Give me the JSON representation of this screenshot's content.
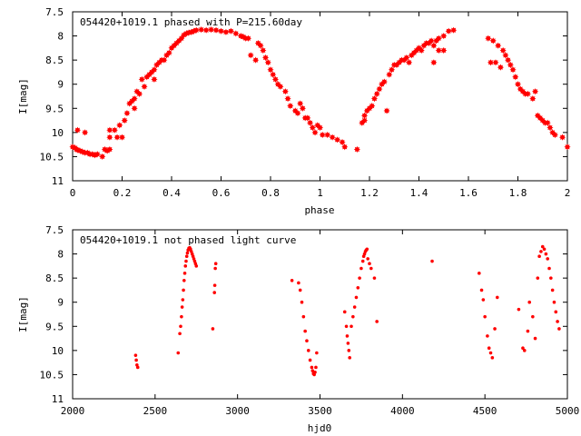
{
  "chart_data": [
    {
      "type": "scatter",
      "title": "054420+1019.1 phased with P=215.60day",
      "xlabel": "phase",
      "ylabel": "I[mag]",
      "xlim": [
        0,
        2
      ],
      "ylim": [
        7.5,
        11
      ],
      "y_inverted": true,
      "xticks": [
        0,
        0.2,
        0.4,
        0.6,
        0.8,
        1,
        1.2,
        1.4,
        1.6,
        1.8,
        2
      ],
      "xtick_labels": [
        "0",
        "0.2",
        "0.4",
        "0.6",
        "0.8",
        "1",
        "1.2",
        "1.4",
        "1.6",
        "1.8",
        "2"
      ],
      "yticks": [
        7.5,
        8,
        8.5,
        9,
        9.5,
        10,
        10.5,
        11
      ],
      "ytick_labels": [
        "7.5",
        "8",
        "8.5",
        "9",
        "9.5",
        "10",
        "10.5",
        "11"
      ],
      "marker_color": "#ff0000",
      "marker": "star",
      "points": [
        [
          0.0,
          10.3
        ],
        [
          0.01,
          10.32
        ],
        [
          0.015,
          10.35
        ],
        [
          0.02,
          10.36
        ],
        [
          0.03,
          10.38
        ],
        [
          0.04,
          10.4
        ],
        [
          0.05,
          10.42
        ],
        [
          0.06,
          10.42
        ],
        [
          0.07,
          10.45
        ],
        [
          0.08,
          10.45
        ],
        [
          0.09,
          10.47
        ],
        [
          0.1,
          10.45
        ],
        [
          0.12,
          10.5
        ],
        [
          0.14,
          10.38
        ],
        [
          0.02,
          9.95
        ],
        [
          0.05,
          10.0
        ],
        [
          0.13,
          10.35
        ],
        [
          0.15,
          10.35
        ],
        [
          0.15,
          10.1
        ],
        [
          0.15,
          9.95
        ],
        [
          0.17,
          9.95
        ],
        [
          0.18,
          10.1
        ],
        [
          0.19,
          9.85
        ],
        [
          0.2,
          10.1
        ],
        [
          0.21,
          9.75
        ],
        [
          0.22,
          9.6
        ],
        [
          0.23,
          9.4
        ],
        [
          0.24,
          9.35
        ],
        [
          0.25,
          9.3
        ],
        [
          0.25,
          9.5
        ],
        [
          0.26,
          9.15
        ],
        [
          0.27,
          9.2
        ],
        [
          0.28,
          8.9
        ],
        [
          0.29,
          9.05
        ],
        [
          0.3,
          8.85
        ],
        [
          0.31,
          8.8
        ],
        [
          0.32,
          8.75
        ],
        [
          0.33,
          8.7
        ],
        [
          0.33,
          8.9
        ],
        [
          0.34,
          8.6
        ],
        [
          0.35,
          8.55
        ],
        [
          0.36,
          8.5
        ],
        [
          0.37,
          8.5
        ],
        [
          0.38,
          8.4
        ],
        [
          0.39,
          8.35
        ],
        [
          0.4,
          8.25
        ],
        [
          0.41,
          8.2
        ],
        [
          0.42,
          8.15
        ],
        [
          0.43,
          8.1
        ],
        [
          0.44,
          8.05
        ],
        [
          0.45,
          7.98
        ],
        [
          0.46,
          7.95
        ],
        [
          0.47,
          7.93
        ],
        [
          0.48,
          7.92
        ],
        [
          0.49,
          7.9
        ],
        [
          0.5,
          7.88
        ],
        [
          0.52,
          7.87
        ],
        [
          0.54,
          7.88
        ],
        [
          0.56,
          7.87
        ],
        [
          0.58,
          7.88
        ],
        [
          0.6,
          7.9
        ],
        [
          0.62,
          7.92
        ],
        [
          0.64,
          7.9
        ],
        [
          0.66,
          7.95
        ],
        [
          0.68,
          8.0
        ],
        [
          0.69,
          8.02
        ],
        [
          0.7,
          8.05
        ],
        [
          0.71,
          8.05
        ],
        [
          0.72,
          8.4
        ],
        [
          0.74,
          8.5
        ],
        [
          0.75,
          8.15
        ],
        [
          0.76,
          8.2
        ],
        [
          0.77,
          8.3
        ],
        [
          0.78,
          8.45
        ],
        [
          0.79,
          8.55
        ],
        [
          0.8,
          8.7
        ],
        [
          0.81,
          8.8
        ],
        [
          0.82,
          8.9
        ],
        [
          0.83,
          9.0
        ],
        [
          0.84,
          9.05
        ],
        [
          0.86,
          9.15
        ],
        [
          0.87,
          9.3
        ],
        [
          0.88,
          9.45
        ],
        [
          0.9,
          9.55
        ],
        [
          0.91,
          9.6
        ],
        [
          0.92,
          9.4
        ],
        [
          0.93,
          9.5
        ],
        [
          0.94,
          9.7
        ],
        [
          0.95,
          9.7
        ],
        [
          0.96,
          9.8
        ],
        [
          0.97,
          9.9
        ],
        [
          0.98,
          10.0
        ],
        [
          0.99,
          9.85
        ],
        [
          1.0,
          9.9
        ],
        [
          1.01,
          10.05
        ],
        [
          1.03,
          10.05
        ],
        [
          1.05,
          10.1
        ],
        [
          1.07,
          10.15
        ],
        [
          1.09,
          10.2
        ],
        [
          1.1,
          10.3
        ],
        [
          1.15,
          10.35
        ],
        [
          1.17,
          9.8
        ],
        [
          1.18,
          9.75
        ],
        [
          1.18,
          9.65
        ],
        [
          1.19,
          9.55
        ],
        [
          1.2,
          9.5
        ],
        [
          1.21,
          9.45
        ],
        [
          1.22,
          9.3
        ],
        [
          1.23,
          9.2
        ],
        [
          1.24,
          9.1
        ],
        [
          1.25,
          9.0
        ],
        [
          1.26,
          8.95
        ],
        [
          1.27,
          9.55
        ],
        [
          1.28,
          8.8
        ],
        [
          1.29,
          8.7
        ],
        [
          1.3,
          8.6
        ],
        [
          1.31,
          8.6
        ],
        [
          1.32,
          8.55
        ],
        [
          1.33,
          8.5
        ],
        [
          1.34,
          8.5
        ],
        [
          1.35,
          8.45
        ],
        [
          1.36,
          8.55
        ],
        [
          1.37,
          8.4
        ],
        [
          1.38,
          8.35
        ],
        [
          1.39,
          8.3
        ],
        [
          1.4,
          8.25
        ],
        [
          1.41,
          8.3
        ],
        [
          1.42,
          8.2
        ],
        [
          1.43,
          8.15
        ],
        [
          1.44,
          8.15
        ],
        [
          1.45,
          8.1
        ],
        [
          1.46,
          8.2
        ],
        [
          1.47,
          8.1
        ],
        [
          1.48,
          8.05
        ],
        [
          1.5,
          8.0
        ],
        [
          1.52,
          7.9
        ],
        [
          1.54,
          7.88
        ],
        [
          1.46,
          8.55
        ],
        [
          1.48,
          8.3
        ],
        [
          1.5,
          8.3
        ],
        [
          1.68,
          8.05
        ],
        [
          1.69,
          8.55
        ],
        [
          1.7,
          8.1
        ],
        [
          1.71,
          8.55
        ],
        [
          1.72,
          8.2
        ],
        [
          1.73,
          8.65
        ],
        [
          1.74,
          8.3
        ],
        [
          1.75,
          8.4
        ],
        [
          1.76,
          8.5
        ],
        [
          1.77,
          8.6
        ],
        [
          1.78,
          8.7
        ],
        [
          1.79,
          8.85
        ],
        [
          1.8,
          9.0
        ],
        [
          1.81,
          9.1
        ],
        [
          1.82,
          9.15
        ],
        [
          1.83,
          9.2
        ],
        [
          1.84,
          9.2
        ],
        [
          1.86,
          9.3
        ],
        [
          1.87,
          9.15
        ],
        [
          1.88,
          9.65
        ],
        [
          1.89,
          9.7
        ],
        [
          1.9,
          9.75
        ],
        [
          1.91,
          9.8
        ],
        [
          1.92,
          9.8
        ],
        [
          1.93,
          9.9
        ],
        [
          1.94,
          10.0
        ],
        [
          1.95,
          10.05
        ],
        [
          1.98,
          10.1
        ],
        [
          2.0,
          10.3
        ]
      ]
    },
    {
      "type": "scatter",
      "title": "054420+1019.1 not phased light curve",
      "xlabel": "hjd0",
      "ylabel": "I[mag]",
      "xlim": [
        2000,
        5000
      ],
      "ylim": [
        7.5,
        11
      ],
      "y_inverted": true,
      "xticks": [
        2000,
        2500,
        3000,
        3500,
        4000,
        4500,
        5000
      ],
      "xtick_labels": [
        "2000",
        "2500",
        "3000",
        "3500",
        "4000",
        "4500",
        "5000"
      ],
      "yticks": [
        7.5,
        8,
        8.5,
        9,
        9.5,
        10,
        10.5,
        11
      ],
      "ytick_labels": [
        "7.5",
        "8",
        "8.5",
        "9",
        "9.5",
        "10",
        "10.5",
        "11"
      ],
      "marker_color": "#ff0000",
      "marker": "dot",
      "points": [
        [
          2382,
          10.1
        ],
        [
          2386,
          10.2
        ],
        [
          2390,
          10.3
        ],
        [
          2395,
          10.35
        ],
        [
          2640,
          10.05
        ],
        [
          2650,
          9.65
        ],
        [
          2655,
          9.5
        ],
        [
          2660,
          9.3
        ],
        [
          2664,
          9.1
        ],
        [
          2668,
          8.95
        ],
        [
          2672,
          8.75
        ],
        [
          2676,
          8.55
        ],
        [
          2680,
          8.4
        ],
        [
          2684,
          8.25
        ],
        [
          2688,
          8.15
        ],
        [
          2692,
          8.05
        ],
        [
          2696,
          7.98
        ],
        [
          2700,
          7.92
        ],
        [
          2705,
          7.88
        ],
        [
          2710,
          7.87
        ],
        [
          2715,
          7.9
        ],
        [
          2720,
          7.95
        ],
        [
          2725,
          8.0
        ],
        [
          2730,
          8.05
        ],
        [
          2735,
          8.1
        ],
        [
          2740,
          8.15
        ],
        [
          2745,
          8.2
        ],
        [
          2750,
          8.25
        ],
        [
          2850,
          9.55
        ],
        [
          2860,
          8.8
        ],
        [
          2862,
          8.65
        ],
        [
          2865,
          8.3
        ],
        [
          2868,
          8.2
        ],
        [
          3330,
          8.55
        ],
        [
          3370,
          8.6
        ],
        [
          3380,
          8.75
        ],
        [
          3390,
          9.0
        ],
        [
          3400,
          9.3
        ],
        [
          3410,
          9.6
        ],
        [
          3420,
          9.8
        ],
        [
          3430,
          10.0
        ],
        [
          3440,
          10.2
        ],
        [
          3450,
          10.35
        ],
        [
          3455,
          10.42
        ],
        [
          3460,
          10.48
        ],
        [
          3465,
          10.5
        ],
        [
          3470,
          10.45
        ],
        [
          3475,
          10.35
        ],
        [
          3480,
          10.05
        ],
        [
          3650,
          9.2
        ],
        [
          3660,
          9.5
        ],
        [
          3665,
          9.7
        ],
        [
          3670,
          9.85
        ],
        [
          3675,
          10.0
        ],
        [
          3680,
          10.15
        ],
        [
          3690,
          9.5
        ],
        [
          3700,
          9.3
        ],
        [
          3710,
          9.1
        ],
        [
          3720,
          8.9
        ],
        [
          3730,
          8.7
        ],
        [
          3740,
          8.5
        ],
        [
          3750,
          8.3
        ],
        [
          3760,
          8.15
        ],
        [
          3765,
          8.05
        ],
        [
          3770,
          8.0
        ],
        [
          3775,
          7.95
        ],
        [
          3780,
          7.92
        ],
        [
          3785,
          7.9
        ],
        [
          3790,
          8.1
        ],
        [
          3800,
          8.2
        ],
        [
          3810,
          8.3
        ],
        [
          3830,
          8.5
        ],
        [
          3845,
          9.4
        ],
        [
          4180,
          8.15
        ],
        [
          4465,
          8.4
        ],
        [
          4480,
          8.75
        ],
        [
          4490,
          8.95
        ],
        [
          4500,
          9.3
        ],
        [
          4515,
          9.7
        ],
        [
          4525,
          9.95
        ],
        [
          4535,
          10.05
        ],
        [
          4545,
          10.15
        ],
        [
          4560,
          9.55
        ],
        [
          4575,
          8.9
        ],
        [
          4705,
          9.15
        ],
        [
          4730,
          9.95
        ],
        [
          4740,
          10.0
        ],
        [
          4760,
          9.6
        ],
        [
          4770,
          9.0
        ],
        [
          4790,
          9.3
        ],
        [
          4805,
          9.75
        ],
        [
          4820,
          8.5
        ],
        [
          4830,
          8.05
        ],
        [
          4840,
          7.95
        ],
        [
          4850,
          7.85
        ],
        [
          4860,
          7.9
        ],
        [
          4870,
          8.0
        ],
        [
          4880,
          8.1
        ],
        [
          4890,
          8.3
        ],
        [
          4900,
          8.5
        ],
        [
          4910,
          8.75
        ],
        [
          4920,
          9.0
        ],
        [
          4930,
          9.2
        ],
        [
          4940,
          9.4
        ],
        [
          4950,
          9.55
        ]
      ]
    }
  ]
}
